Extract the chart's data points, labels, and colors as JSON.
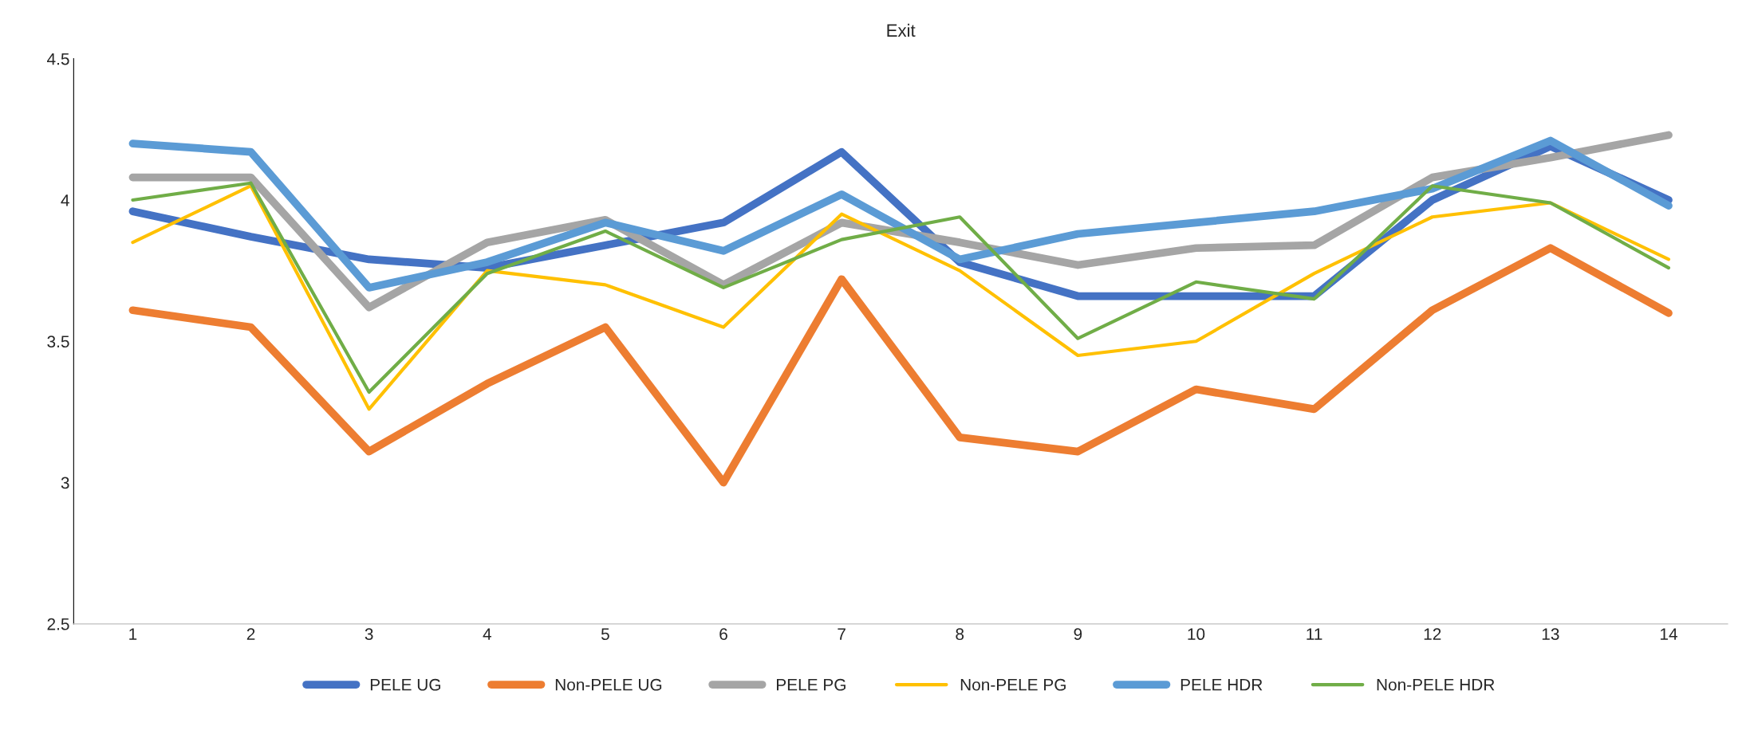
{
  "chart_data": {
    "type": "line",
    "title": "Exit",
    "categories": [
      "1",
      "2",
      "3",
      "4",
      "5",
      "6",
      "7",
      "8",
      "9",
      "10",
      "11",
      "12",
      "13",
      "14"
    ],
    "ylim": [
      2.5,
      4.5
    ],
    "yticks": [
      2.5,
      3,
      3.5,
      4,
      4.5
    ],
    "grid": false,
    "legend": "bottom",
    "marker": "none",
    "line_style": "solid",
    "series": [
      {
        "name": "PELE UG",
        "color": "#4472c4",
        "values": [
          3.96,
          3.87,
          3.79,
          3.76,
          3.84,
          3.92,
          4.17,
          3.78,
          3.66,
          3.66,
          3.66,
          4.0,
          4.19,
          4.0
        ]
      },
      {
        "name": "Non-PELE UG",
        "color": "#ed7d31",
        "values": [
          3.61,
          3.55,
          3.11,
          3.35,
          3.55,
          3.0,
          3.72,
          3.16,
          3.11,
          3.33,
          3.26,
          3.61,
          3.83,
          3.6
        ]
      },
      {
        "name": "PELE PG",
        "color": "#a5a5a5",
        "values": [
          4.08,
          4.08,
          3.62,
          3.85,
          3.93,
          3.7,
          3.92,
          3.85,
          3.77,
          3.83,
          3.84,
          4.08,
          4.15,
          4.23
        ]
      },
      {
        "name": "Non-PELE PG",
        "color": "#ffc000",
        "values": [
          3.85,
          4.05,
          3.26,
          3.75,
          3.7,
          3.55,
          3.95,
          3.75,
          3.45,
          3.5,
          3.74,
          3.94,
          3.99,
          3.79
        ]
      },
      {
        "name": "PELE HDR",
        "color": "#5b9bd5",
        "values": [
          4.2,
          4.17,
          3.69,
          3.78,
          3.92,
          3.82,
          4.02,
          3.79,
          3.88,
          3.92,
          3.96,
          4.04,
          4.21,
          3.98
        ]
      },
      {
        "name": "Non-PELE HDR",
        "color": "#70ad47",
        "values": [
          4.0,
          4.06,
          3.32,
          3.74,
          3.89,
          3.69,
          3.86,
          3.94,
          3.51,
          3.71,
          3.65,
          4.05,
          3.99,
          3.76
        ]
      }
    ]
  }
}
